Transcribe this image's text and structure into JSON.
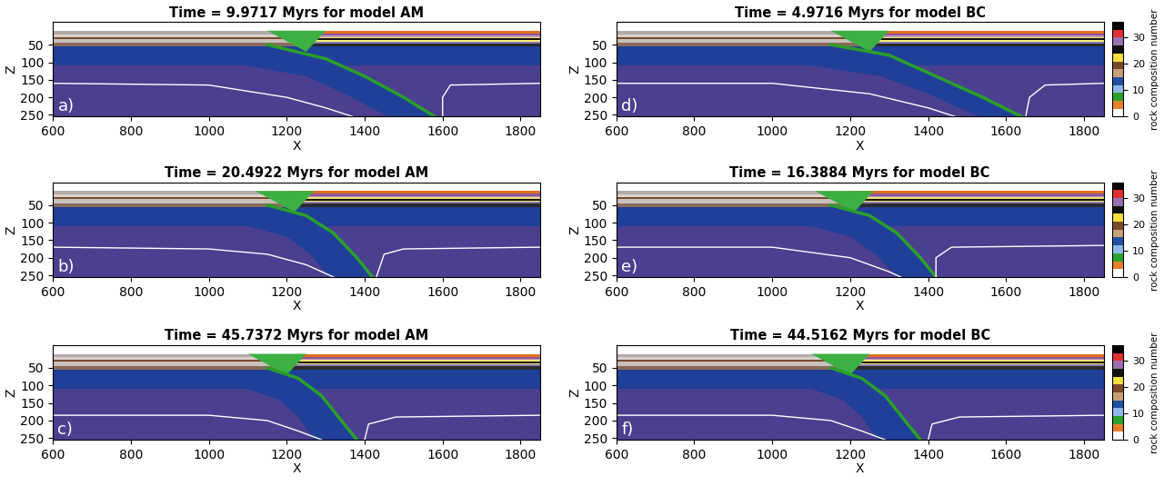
{
  "chart_data": [
    {
      "type": "composition_section",
      "title": "Time = 9.9717 Myrs for model AM",
      "panel_label": "a)",
      "xlabel": "X",
      "ylabel": "Z",
      "xlim": [
        600,
        1850
      ],
      "ylim": [
        255,
        -15
      ],
      "xticks": [
        600,
        800,
        1000,
        1200,
        1400,
        1600,
        1800
      ],
      "yticks": [
        50,
        100,
        150,
        200,
        250
      ],
      "trench_x": 1250,
      "slab": {
        "right_edge": {
          "x": [
            1150,
            1300,
            1400,
            1500,
            1580
          ],
          "z": [
            50,
            90,
            140,
            200,
            255
          ]
        },
        "left_edge": {
          "x": [
            1100,
            1250,
            1350,
            1460
          ],
          "z": [
            110,
            140,
            190,
            255
          ]
        }
      },
      "isotherms": [
        {
          "x": [
            600,
            1000,
            1200,
            1300,
            1370
          ],
          "z": [
            160,
            165,
            200,
            230,
            255
          ]
        },
        {
          "x": [
            1850,
            1620,
            1600,
            1600
          ],
          "z": [
            160,
            165,
            200,
            255
          ]
        }
      ]
    },
    {
      "type": "composition_section",
      "title": "Time = 20.4922 Myrs for model AM",
      "panel_label": "b)",
      "xlabel": "X",
      "ylabel": "Z",
      "xlim": [
        600,
        1850
      ],
      "ylim": [
        255,
        -15
      ],
      "xticks": [
        600,
        800,
        1000,
        1200,
        1400,
        1600,
        1800
      ],
      "yticks": [
        50,
        100,
        150,
        200,
        250
      ],
      "trench_x": 1220,
      "slab": {
        "right_edge": {
          "x": [
            1150,
            1250,
            1320,
            1380,
            1420
          ],
          "z": [
            50,
            80,
            130,
            200,
            255
          ]
        },
        "left_edge": {
          "x": [
            1100,
            1200,
            1260,
            1310
          ],
          "z": [
            110,
            140,
            190,
            255
          ]
        }
      },
      "isotherms": [
        {
          "x": [
            600,
            1000,
            1150,
            1250,
            1320
          ],
          "z": [
            170,
            175,
            190,
            220,
            255
          ]
        },
        {
          "x": [
            1850,
            1500,
            1450,
            1430
          ],
          "z": [
            170,
            175,
            190,
            255
          ]
        }
      ]
    },
    {
      "type": "composition_section",
      "title": "Time = 45.7372 Myrs for model AM",
      "panel_label": "c)",
      "xlabel": "X",
      "ylabel": "Z",
      "xlim": [
        600,
        1850
      ],
      "ylim": [
        255,
        -15
      ],
      "xticks": [
        600,
        800,
        1000,
        1200,
        1400,
        1600,
        1800
      ],
      "yticks": [
        50,
        100,
        150,
        200,
        250
      ],
      "trench_x": 1200,
      "slab": {
        "right_edge": {
          "x": [
            1150,
            1230,
            1290,
            1340,
            1380
          ],
          "z": [
            50,
            80,
            130,
            200,
            255
          ]
        },
        "left_edge": {
          "x": [
            1100,
            1180,
            1230,
            1270
          ],
          "z": [
            110,
            140,
            190,
            255
          ]
        }
      },
      "isotherms": [
        {
          "x": [
            600,
            1000,
            1150,
            1230,
            1290
          ],
          "z": [
            185,
            185,
            200,
            230,
            255
          ]
        },
        {
          "x": [
            1850,
            1480,
            1410,
            1400
          ],
          "z": [
            185,
            190,
            210,
            255
          ]
        }
      ]
    },
    {
      "type": "composition_section",
      "title": "Time = 4.9716 Myrs for model BC",
      "panel_label": "d)",
      "xlabel": "X",
      "ylabel": "Z",
      "xlim": [
        600,
        1850
      ],
      "ylim": [
        255,
        -15
      ],
      "xticks": [
        600,
        800,
        1000,
        1200,
        1400,
        1600,
        1800
      ],
      "yticks": [
        50,
        100,
        150,
        200,
        250
      ],
      "trench_x": 1250,
      "slab": {
        "right_edge": {
          "x": [
            1150,
            1300,
            1420,
            1540,
            1640
          ],
          "z": [
            50,
            80,
            140,
            200,
            255
          ]
        },
        "left_edge": {
          "x": [
            1100,
            1280,
            1400,
            1530
          ],
          "z": [
            110,
            140,
            190,
            255
          ]
        }
      },
      "isotherms": [
        {
          "x": [
            600,
            1000,
            1250,
            1400,
            1470
          ],
          "z": [
            160,
            160,
            190,
            230,
            255
          ]
        },
        {
          "x": [
            1850,
            1700,
            1660,
            1650
          ],
          "z": [
            160,
            165,
            200,
            255
          ]
        }
      ]
    },
    {
      "type": "composition_section",
      "title": "Time = 16.3884 Myrs for model BC",
      "panel_label": "e)",
      "xlabel": "X",
      "ylabel": "Z",
      "xlim": [
        600,
        1850
      ],
      "ylim": [
        255,
        -15
      ],
      "xticks": [
        600,
        800,
        1000,
        1200,
        1400,
        1600,
        1800
      ],
      "yticks": [
        50,
        100,
        150,
        200,
        250
      ],
      "trench_x": 1210,
      "slab": {
        "right_edge": {
          "x": [
            1150,
            1250,
            1320,
            1380,
            1420
          ],
          "z": [
            50,
            80,
            130,
            200,
            255
          ]
        },
        "left_edge": {
          "x": [
            1100,
            1200,
            1265,
            1320
          ],
          "z": [
            110,
            140,
            190,
            255
          ]
        }
      },
      "isotherms": [
        {
          "x": [
            600,
            1000,
            1200,
            1300,
            1330
          ],
          "z": [
            170,
            170,
            200,
            240,
            255
          ]
        },
        {
          "x": [
            1850,
            1460,
            1420,
            1420
          ],
          "z": [
            165,
            170,
            200,
            255
          ]
        }
      ]
    },
    {
      "type": "composition_section",
      "title": "Time = 44.5162 Myrs for model BC",
      "panel_label": "f)",
      "xlabel": "X",
      "ylabel": "Z",
      "xlim": [
        600,
        1850
      ],
      "ylim": [
        255,
        -15
      ],
      "xticks": [
        600,
        800,
        1000,
        1200,
        1400,
        1600,
        1800
      ],
      "yticks": [
        50,
        100,
        150,
        200,
        250
      ],
      "trench_x": 1200,
      "slab": {
        "right_edge": {
          "x": [
            1150,
            1230,
            1290,
            1340,
            1380
          ],
          "z": [
            50,
            80,
            130,
            200,
            255
          ]
        },
        "left_edge": {
          "x": [
            1100,
            1180,
            1230,
            1270
          ],
          "z": [
            110,
            140,
            190,
            255
          ]
        }
      },
      "isotherms": [
        {
          "x": [
            600,
            1000,
            1150,
            1230,
            1290
          ],
          "z": [
            185,
            185,
            200,
            230,
            255
          ]
        },
        {
          "x": [
            1850,
            1480,
            1410,
            1400
          ],
          "z": [
            185,
            190,
            210,
            255
          ]
        }
      ]
    }
  ],
  "model": {
    "crust": {
      "left": [
        {
          "top": 10,
          "bottom": 20,
          "color": "#b3aaa8"
        },
        {
          "top": 20,
          "bottom": 28,
          "color": "#d9d1cd"
        },
        {
          "top": 28,
          "bottom": 33,
          "color": "#7a4a2a"
        },
        {
          "top": 33,
          "bottom": 45,
          "color": "#c8c0bc"
        },
        {
          "top": 45,
          "bottom": 55,
          "color": "#8a6a5a"
        }
      ],
      "right": [
        {
          "top": 10,
          "bottom": 18,
          "color": "#e07020"
        },
        {
          "top": 18,
          "bottom": 24,
          "color": "#8a5a9a"
        },
        {
          "top": 24,
          "bottom": 28,
          "color": "#c090c0"
        },
        {
          "top": 28,
          "bottom": 32,
          "color": "#f0e070"
        },
        {
          "top": 32,
          "bottom": 37,
          "color": "#111111"
        },
        {
          "top": 37,
          "bottom": 41,
          "color": "#f5f07a"
        },
        {
          "top": 41,
          "bottom": 46,
          "color": "#8a7ab0"
        },
        {
          "top": 46,
          "bottom": 55,
          "color": "#2a2a2a"
        }
      ]
    },
    "wedge": {
      "dx": [
        -100,
        50,
        0
      ],
      "z": [
        10,
        10,
        70
      ],
      "color": "#3cb043"
    },
    "lithosphere": {
      "top": 55,
      "bottom": 110,
      "color": "#1f3f99"
    },
    "mantle": {
      "top": 110,
      "color": "#4b3f8f"
    },
    "weak_zone_color": "#2aa02a",
    "isotherm_color": "#ffffff",
    "colorbar": {
      "label": "rock composition number",
      "range": [
        0,
        36
      ],
      "ticks": [
        0,
        10,
        20,
        30
      ],
      "colors": [
        "#ffffff",
        "#e8802a",
        "#2ca02c",
        "#8fb8e8",
        "#2050a0",
        "#c8a078",
        "#7a4a2a",
        "#f0e040",
        "#111111",
        "#9a70b0",
        "#e03030",
        "#000000"
      ]
    }
  }
}
